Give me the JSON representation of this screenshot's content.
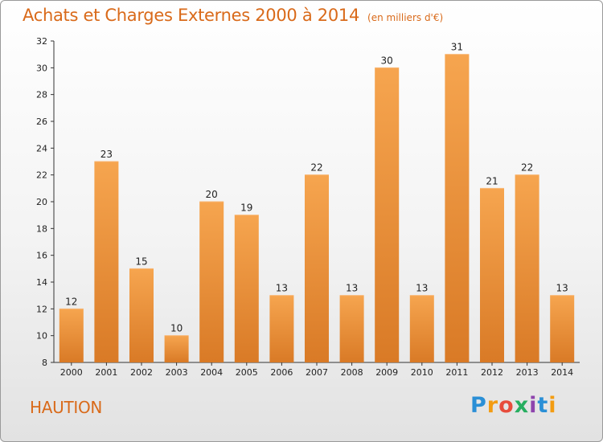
{
  "title": "Achats et Charges Externes 2000 à 2014",
  "subtitle": "(en milliers d'€)",
  "place": "HAUTION",
  "logo": {
    "text": "Proxiti",
    "colors": [
      "#2a8fd6",
      "#f39c12",
      "#e74c3c",
      "#27ae60",
      "#8e44ad",
      "#2a8fd6",
      "#f39c12"
    ]
  },
  "colors": {
    "accent": "#d96a1a",
    "bar_top": "#f6a54f",
    "bar_bottom": "#d97a26"
  },
  "chart_data": {
    "type": "bar",
    "categories": [
      "2000",
      "2001",
      "2002",
      "2003",
      "2004",
      "2005",
      "2006",
      "2007",
      "2008",
      "2009",
      "2010",
      "2011",
      "2012",
      "2013",
      "2014"
    ],
    "values": [
      12,
      23,
      15,
      10,
      20,
      19,
      13,
      22,
      13,
      30,
      13,
      31,
      21,
      22,
      13
    ],
    "ylim": [
      8,
      32
    ],
    "yticks": [
      8,
      10,
      12,
      14,
      16,
      18,
      20,
      22,
      24,
      26,
      28,
      30,
      32
    ],
    "grid": false,
    "legend": "none"
  }
}
